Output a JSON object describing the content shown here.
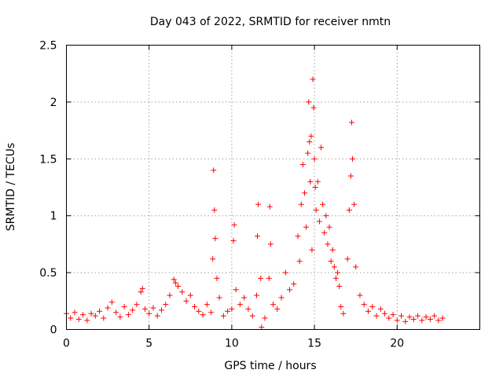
{
  "chart_data": {
    "type": "scatter",
    "title": "Day 043 of 2022, SRMTID for receiver nmtn",
    "xlabel": "GPS time / hours",
    "ylabel": "SRMTID / TECUs",
    "xlim": [
      0,
      25
    ],
    "ylim": [
      0,
      2.5
    ],
    "grid": true,
    "x_ticks": [
      0,
      5,
      10,
      15,
      20
    ],
    "x_tick_labels": [
      "0",
      "5",
      "10",
      "15",
      "20"
    ],
    "y_ticks": [
      0,
      0.5,
      1,
      1.5,
      2,
      2.5
    ],
    "y_tick_labels": [
      "0",
      "0.5",
      "1",
      "1.5",
      "2",
      "2.5"
    ],
    "marker": "plus",
    "series_color": "#ff0000",
    "series": [
      {
        "name": "SRMTID",
        "x": [
          0.0,
          0.25,
          0.5,
          0.75,
          1.0,
          1.25,
          1.5,
          1.75,
          2.0,
          2.25,
          2.5,
          2.75,
          3.0,
          3.25,
          3.5,
          3.75,
          4.0,
          4.25,
          4.5,
          4.6,
          4.75,
          5.0,
          5.25,
          5.5,
          5.75,
          6.0,
          6.25,
          6.5,
          6.6,
          6.75,
          7.0,
          7.25,
          7.5,
          7.75,
          8.0,
          8.25,
          8.5,
          8.75,
          8.85,
          8.9,
          8.95,
          9.0,
          9.1,
          9.25,
          9.5,
          9.75,
          10.0,
          10.1,
          10.15,
          10.25,
          10.5,
          10.75,
          11.0,
          11.25,
          11.5,
          11.55,
          11.6,
          11.75,
          11.8,
          12.0,
          12.25,
          12.3,
          12.35,
          12.5,
          12.75,
          13.0,
          13.25,
          13.5,
          13.75,
          14.0,
          14.1,
          14.2,
          14.3,
          14.4,
          14.5,
          14.6,
          14.65,
          14.7,
          14.75,
          14.8,
          14.85,
          14.9,
          14.95,
          15.0,
          15.05,
          15.1,
          15.2,
          15.3,
          15.4,
          15.5,
          15.6,
          15.7,
          15.8,
          15.9,
          16.0,
          16.1,
          16.2,
          16.3,
          16.4,
          16.5,
          16.6,
          16.75,
          17.0,
          17.1,
          17.2,
          17.25,
          17.3,
          17.4,
          17.5,
          17.75,
          18.0,
          18.25,
          18.5,
          18.75,
          19.0,
          19.25,
          19.5,
          19.75,
          20.0,
          20.25,
          20.5,
          20.75,
          21.0,
          21.25,
          21.5,
          21.75,
          22.0,
          22.25,
          22.5,
          22.75
        ],
        "y": [
          0.14,
          0.1,
          0.15,
          0.09,
          0.13,
          0.08,
          0.14,
          0.12,
          0.16,
          0.1,
          0.19,
          0.24,
          0.15,
          0.11,
          0.2,
          0.13,
          0.17,
          0.22,
          0.33,
          0.36,
          0.18,
          0.14,
          0.19,
          0.12,
          0.17,
          0.22,
          0.3,
          0.44,
          0.41,
          0.38,
          0.33,
          0.25,
          0.3,
          0.2,
          0.16,
          0.13,
          0.22,
          0.15,
          0.62,
          1.4,
          1.05,
          0.8,
          0.45,
          0.28,
          0.12,
          0.16,
          0.18,
          0.78,
          0.92,
          0.35,
          0.22,
          0.28,
          0.18,
          0.12,
          0.3,
          0.82,
          1.1,
          0.45,
          0.02,
          0.1,
          0.45,
          1.08,
          0.75,
          0.22,
          0.18,
          0.28,
          0.5,
          0.35,
          0.4,
          0.82,
          0.6,
          1.1,
          1.45,
          1.2,
          0.9,
          1.55,
          2.0,
          1.65,
          1.3,
          1.7,
          0.7,
          2.2,
          1.95,
          1.5,
          1.25,
          1.05,
          1.3,
          0.95,
          1.6,
          1.1,
          0.85,
          1.0,
          0.75,
          0.9,
          0.6,
          0.7,
          0.55,
          0.45,
          0.5,
          0.38,
          0.2,
          0.14,
          0.62,
          1.05,
          1.35,
          1.82,
          1.5,
          1.1,
          0.55,
          0.3,
          0.22,
          0.16,
          0.2,
          0.12,
          0.18,
          0.14,
          0.1,
          0.13,
          0.08,
          0.12,
          0.07,
          0.11,
          0.09,
          0.12,
          0.08,
          0.11,
          0.09,
          0.12,
          0.08,
          0.1
        ]
      }
    ]
  }
}
